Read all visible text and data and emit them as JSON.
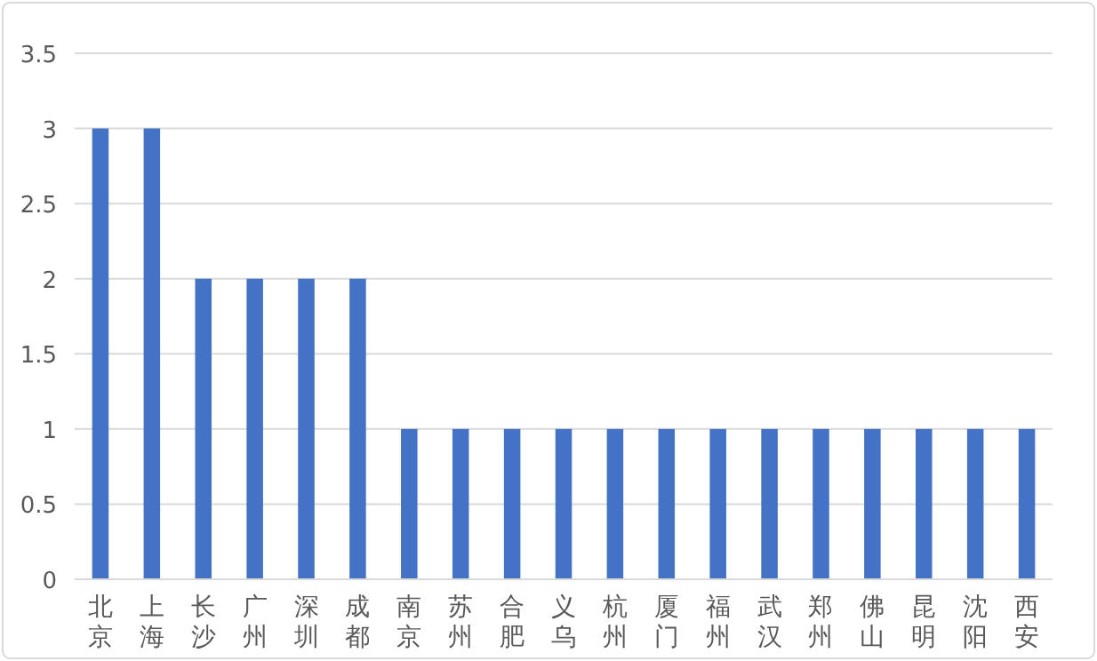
{
  "chart_data": {
    "type": "bar",
    "categories": [
      "北京",
      "上海",
      "长沙",
      "广州",
      "深圳",
      "成都",
      "南京",
      "苏州",
      "合肥",
      "义乌",
      "杭州",
      "厦门",
      "福州",
      "武汉",
      "郑州",
      "佛山",
      "昆明",
      "沈阳",
      "西安"
    ],
    "values": [
      3,
      3,
      2,
      2,
      2,
      2,
      1,
      1,
      1,
      1,
      1,
      1,
      1,
      1,
      1,
      1,
      1,
      1,
      1
    ],
    "color": "#4472c4",
    "ylim": [
      0,
      3.5
    ],
    "yticks": [
      0,
      0.5,
      1,
      1.5,
      2,
      2.5,
      3,
      3.5
    ],
    "grid": "y"
  }
}
